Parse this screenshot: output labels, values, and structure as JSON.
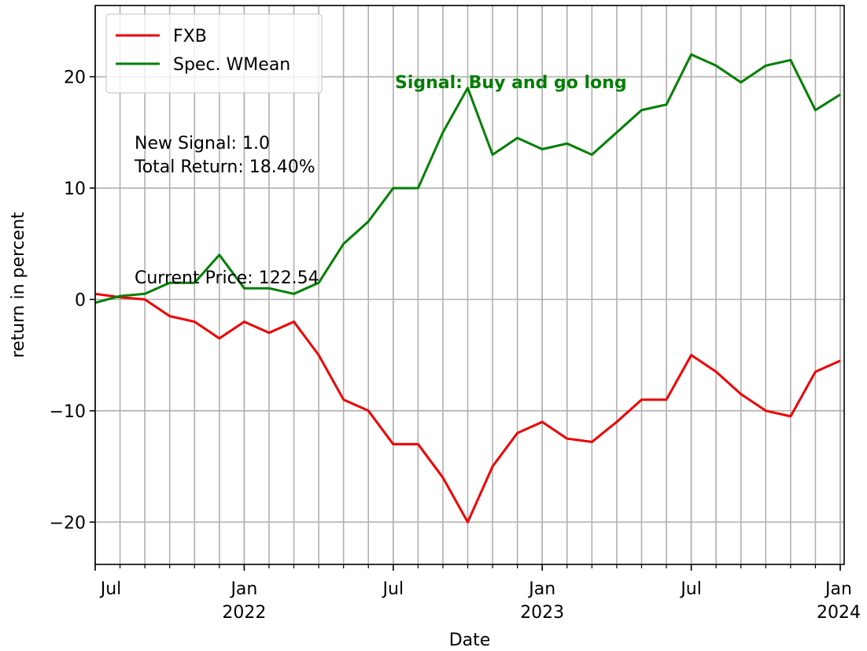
{
  "chart_data": {
    "type": "line",
    "xlabel": "Date",
    "ylabel": "return in percent",
    "x": [
      "2021-07",
      "2021-08",
      "2021-09",
      "2021-10",
      "2021-11",
      "2021-12",
      "2022-01",
      "2022-02",
      "2022-03",
      "2022-04",
      "2022-05",
      "2022-06",
      "2022-07",
      "2022-08",
      "2022-09",
      "2022-10",
      "2022-11",
      "2022-12",
      "2023-01",
      "2023-02",
      "2023-03",
      "2023-04",
      "2023-05",
      "2023-06",
      "2023-07",
      "2023-08",
      "2023-09",
      "2023-10",
      "2023-11",
      "2023-12",
      "2024-01"
    ],
    "series": [
      {
        "name": "FXB",
        "color": "#ee0000",
        "values": [
          0.5,
          0.2,
          0,
          -1.5,
          -2,
          -3.5,
          -2,
          -3,
          -2,
          -5,
          -9,
          -10,
          -13,
          -13,
          -16,
          -20,
          -15,
          -12,
          -11,
          -12.5,
          -12.8,
          -11,
          -9,
          -9,
          -5,
          -6.5,
          -8.5,
          -10,
          -10.5,
          -6.5,
          -5.5
        ]
      },
      {
        "name": "Spec. WMean",
        "color": "#007f00",
        "values": [
          -0.3,
          0.3,
          0.5,
          1.5,
          1.5,
          4,
          1,
          1,
          0.5,
          1.5,
          5,
          7,
          10,
          10,
          15,
          19,
          13,
          14.5,
          13.5,
          14,
          13,
          15,
          17,
          17.5,
          22,
          21,
          19.5,
          21,
          21.5,
          17,
          18.4
        ]
      }
    ],
    "xlim": [
      "2021-07",
      "2024-01"
    ],
    "xticks": [
      {
        "value": "2021-07",
        "label": "Jul"
      },
      {
        "value": "2022-01",
        "label": "Jan\n2022"
      },
      {
        "value": "2022-07",
        "label": "Jul"
      },
      {
        "value": "2023-01",
        "label": "Jan\n2023"
      },
      {
        "value": "2023-07",
        "label": "Jul"
      },
      {
        "value": "2024-01",
        "label": "Jan\n2024"
      }
    ],
    "ylim": [
      -23.8,
      26.4
    ],
    "yticks": [
      {
        "value": -20,
        "label": "−20"
      },
      {
        "value": -10,
        "label": "−10"
      },
      0,
      10,
      20
    ],
    "grid": true,
    "legend": "upper left",
    "annotations": [
      {
        "text": "New Signal: 1.0"
      },
      {
        "text": "Total Return: 18.40%"
      },
      {
        "text": "Current Price: 122.54"
      },
      {
        "text": "Signal: Buy and go long",
        "color": "#007f00"
      }
    ]
  }
}
